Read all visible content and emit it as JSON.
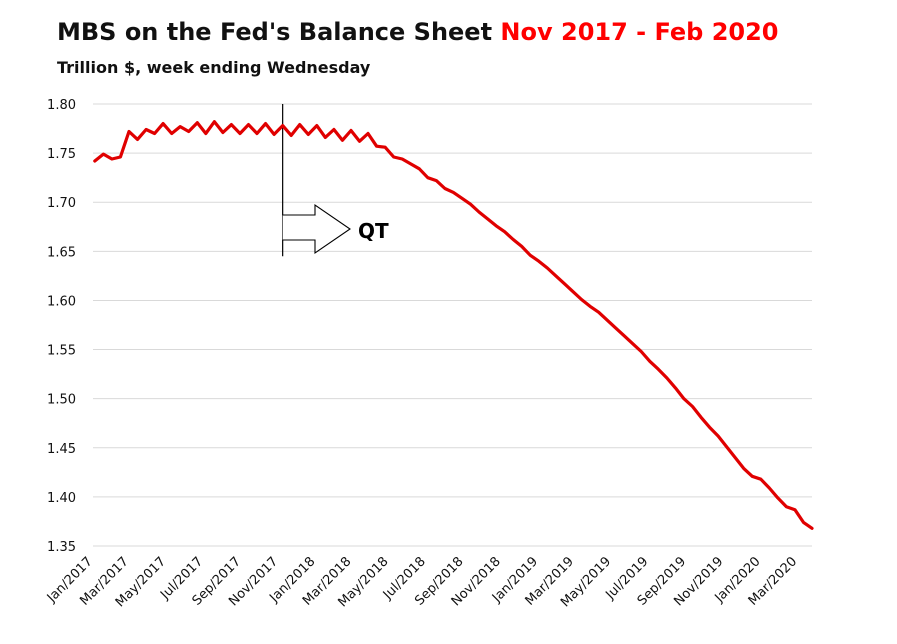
{
  "title_main": "MBS on the Fed's Balance Sheet",
  "title_highlight": "Nov 2017 - Feb 2020",
  "subtitle": "Trillion $, week ending Wednesday",
  "colors": {
    "line": "#e00000",
    "highlight": "#ff0000",
    "grid": "#d9d9d9",
    "text": "#111111"
  },
  "chart_data": {
    "type": "line",
    "ylim": [
      1.35,
      1.8
    ],
    "yticks": [
      "1.80",
      "1.75",
      "1.70",
      "1.65",
      "1.60",
      "1.55",
      "1.50",
      "1.45",
      "1.40",
      "1.35"
    ],
    "xticks": [
      "Jan/2017",
      "Mar/2017",
      "May/2017",
      "Jul/2017",
      "Sep/2017",
      "Nov/2017",
      "Jan/2018",
      "Mar/2018",
      "May/2018",
      "Jul/2018",
      "Sep/2018",
      "Nov/2018",
      "Jan/2019",
      "Mar/2019",
      "May/2019",
      "Jul/2019",
      "Sep/2019",
      "Nov/2019",
      "Jan/2020",
      "Mar/2020"
    ],
    "grid": true,
    "legend": "none",
    "series": [
      {
        "x": [
          "2017-01-04",
          "2017-01-18",
          "2017-02-01",
          "2017-02-15",
          "2017-03-01",
          "2017-03-15",
          "2017-03-29",
          "2017-04-12",
          "2017-04-26",
          "2017-05-10",
          "2017-05-24",
          "2017-06-07",
          "2017-06-21",
          "2017-07-05",
          "2017-07-19",
          "2017-08-02",
          "2017-08-16",
          "2017-08-30",
          "2017-09-13",
          "2017-09-27",
          "2017-10-11",
          "2017-10-25",
          "2017-11-08",
          "2017-11-22",
          "2017-12-06",
          "2017-12-20",
          "2018-01-03",
          "2018-01-17",
          "2018-01-31",
          "2018-02-14",
          "2018-02-28",
          "2018-03-14",
          "2018-03-28",
          "2018-04-11",
          "2018-04-25",
          "2018-05-09",
          "2018-05-23",
          "2018-06-06",
          "2018-06-20",
          "2018-07-04",
          "2018-07-18",
          "2018-08-01",
          "2018-08-15",
          "2018-08-29",
          "2018-09-12",
          "2018-09-26",
          "2018-10-10",
          "2018-10-24",
          "2018-11-07",
          "2018-11-21",
          "2018-12-05",
          "2018-12-19",
          "2019-01-02",
          "2019-01-16",
          "2019-01-30",
          "2019-02-13",
          "2019-02-27",
          "2019-03-13",
          "2019-03-27",
          "2019-04-10",
          "2019-04-24",
          "2019-05-08",
          "2019-05-22",
          "2019-06-05",
          "2019-06-19",
          "2019-07-03",
          "2019-07-17",
          "2019-07-31",
          "2019-08-14",
          "2019-08-28",
          "2019-09-11",
          "2019-09-25",
          "2019-10-09",
          "2019-10-23",
          "2019-11-06",
          "2019-11-20",
          "2019-12-04",
          "2019-12-18",
          "2020-01-01",
          "2020-01-15",
          "2020-01-29",
          "2020-02-12",
          "2020-02-26",
          "2020-03-11",
          "2020-03-25"
        ],
        "values": [
          1.742,
          1.749,
          1.744,
          1.746,
          1.772,
          1.764,
          1.774,
          1.77,
          1.78,
          1.77,
          1.777,
          1.772,
          1.781,
          1.77,
          1.782,
          1.771,
          1.779,
          1.77,
          1.779,
          1.77,
          1.78,
          1.769,
          1.778,
          1.768,
          1.779,
          1.769,
          1.778,
          1.766,
          1.774,
          1.763,
          1.773,
          1.762,
          1.77,
          1.757,
          1.756,
          1.746,
          1.744,
          1.739,
          1.734,
          1.725,
          1.722,
          1.714,
          1.71,
          1.704,
          1.698,
          1.69,
          1.683,
          1.676,
          1.67,
          1.662,
          1.655,
          1.646,
          1.64,
          1.633,
          1.625,
          1.617,
          1.609,
          1.601,
          1.594,
          1.588,
          1.58,
          1.572,
          1.564,
          1.556,
          1.548,
          1.538,
          1.53,
          1.521,
          1.511,
          1.5,
          1.492,
          1.481,
          1.471,
          1.462,
          1.451,
          1.44,
          1.429,
          1.421,
          1.418,
          1.409,
          1.399,
          1.39,
          1.387,
          1.374,
          1.368
        ]
      }
    ],
    "annotations": [
      {
        "text": "QT",
        "x": "2017-11-08",
        "span": [
          1.645,
          1.8
        ]
      }
    ]
  }
}
